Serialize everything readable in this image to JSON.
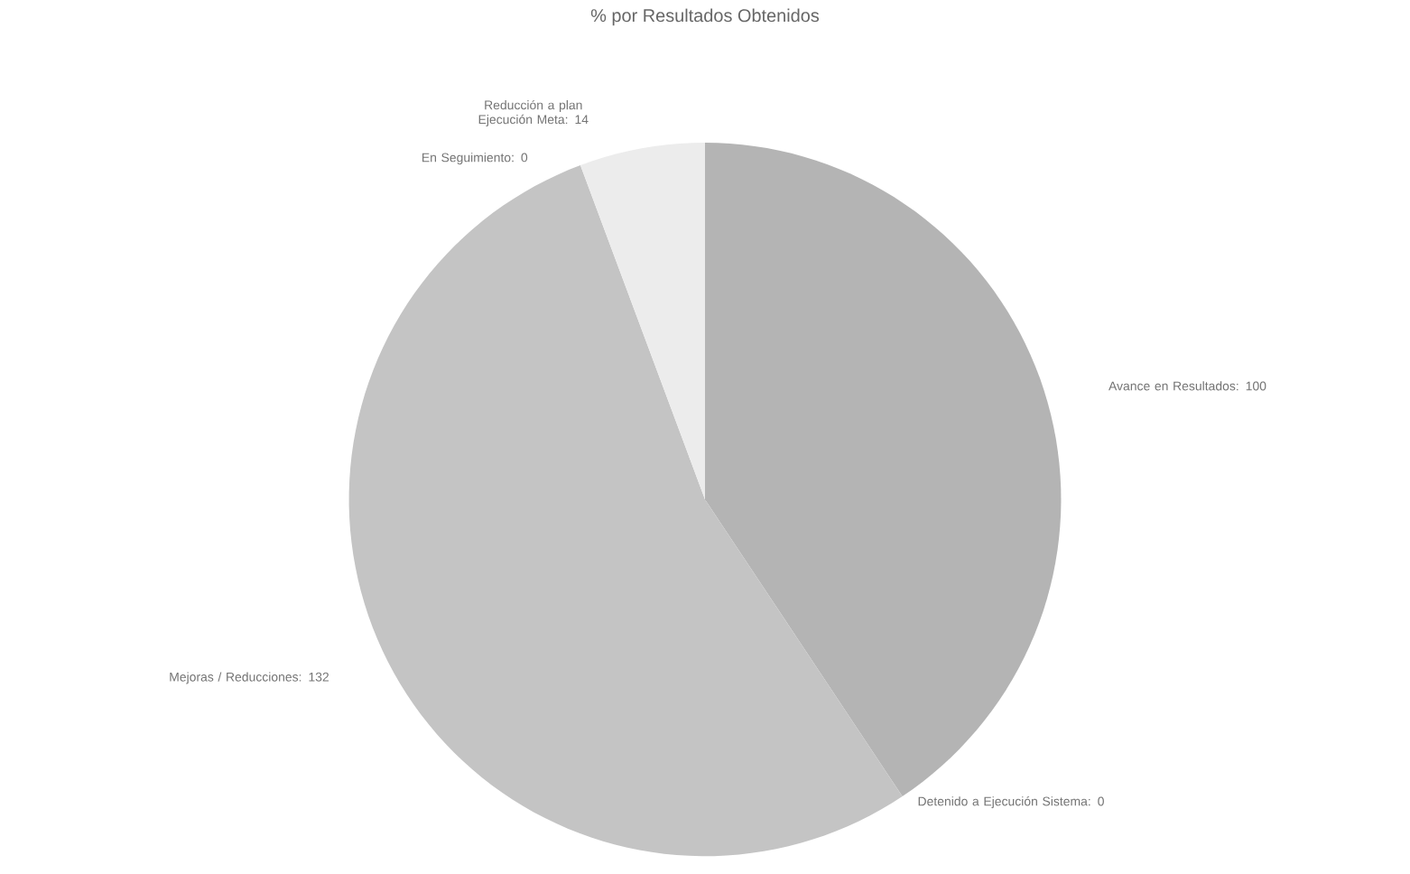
{
  "chart_data": {
    "type": "pie",
    "title": "% por Resultados Obtenidos",
    "categories": [
      "Avance en Resultados: 100",
      "Detenido a Ejecución Sistema: 0",
      "Mejoras / Reducciones: 132",
      "En Seguimiento: 0",
      "Reducción a plan Ejecución Meta: 14"
    ],
    "values": [
      100,
      0,
      132,
      0,
      14
    ],
    "colors": [
      "#b4b4b4",
      "#bdbdbd",
      "#c4c4c4",
      "#d0d0d0",
      "#ececec"
    ]
  }
}
